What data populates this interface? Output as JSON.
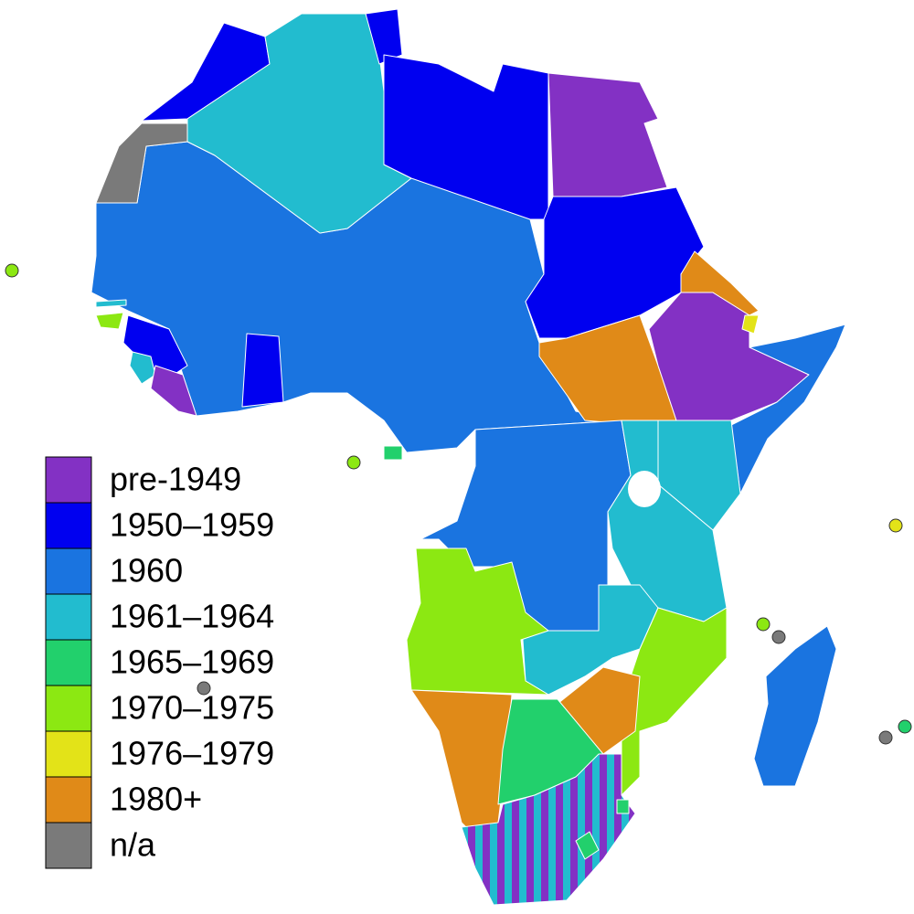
{
  "legend": {
    "items": [
      {
        "label": "pre-1949",
        "color": "#8331c4"
      },
      {
        "label": "1950–1959",
        "color": "#0000f0"
      },
      {
        "label": "1960",
        "color": "#1a74e0"
      },
      {
        "label": "1961–1964",
        "color": "#22bccf"
      },
      {
        "label": "1965–1969",
        "color": "#22d06c"
      },
      {
        "label": "1970–1975",
        "color": "#8ce812"
      },
      {
        "label": "1976–1979",
        "color": "#e3e318"
      },
      {
        "label": "1980+",
        "color": "#e08a18"
      },
      {
        "label": "n/a",
        "color": "#7a7a7a"
      }
    ]
  }
}
